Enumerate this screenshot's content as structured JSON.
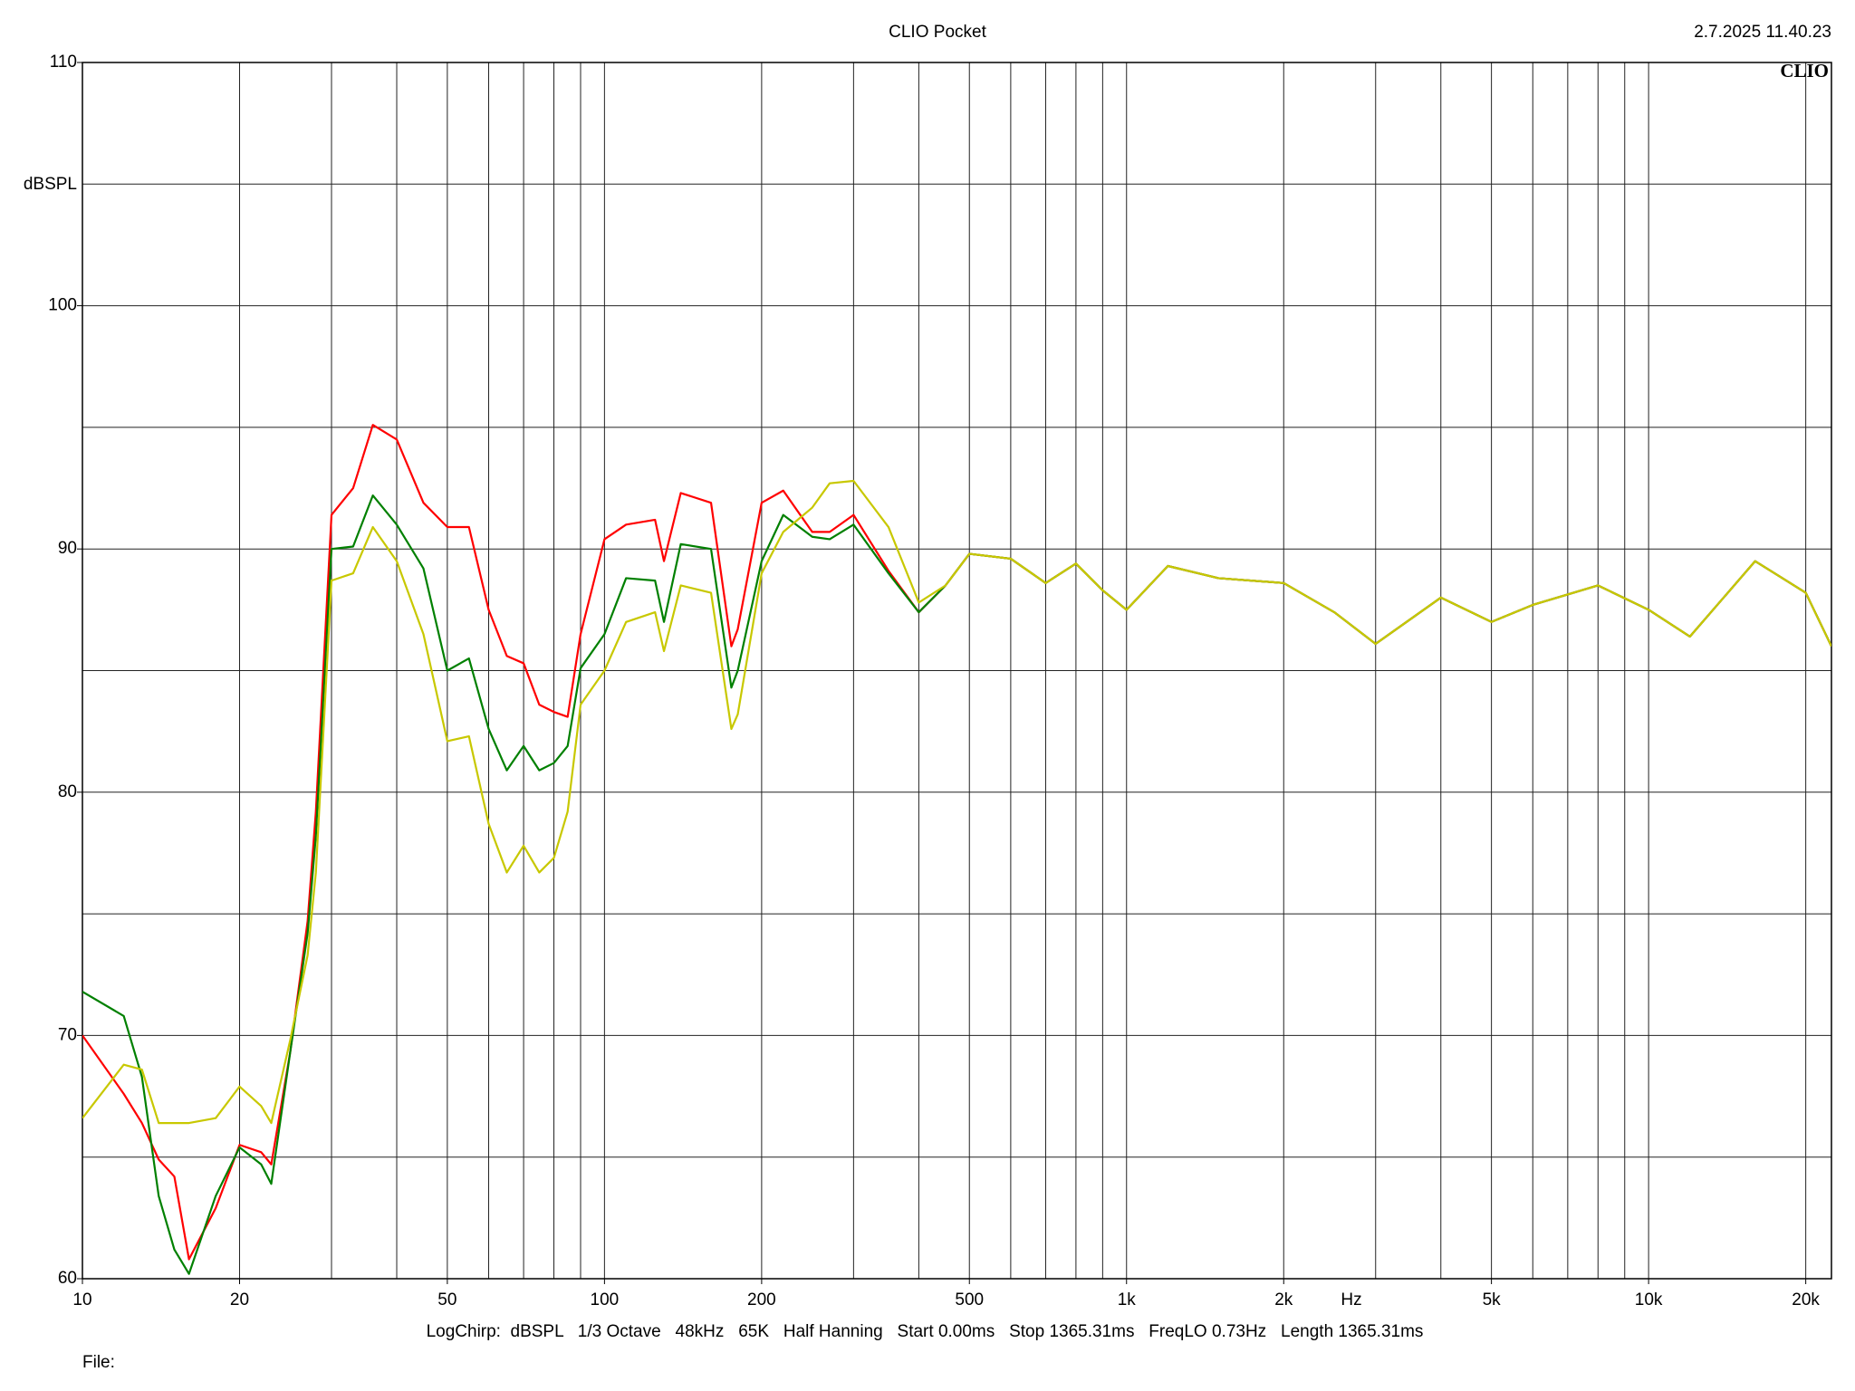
{
  "chart_data": {
    "type": "line",
    "title": "CLIO Pocket",
    "timestamp": "2.7.2025 11.40.23",
    "logo": "CLIO",
    "y_label": "dBSPL",
    "x_label": "Hz",
    "footer": "LogChirp:  dBSPL   1/3 Octave   48kHz   65K   Half Hanning   Start 0.00ms   Stop 1365.31ms   FreqLO 0.73Hz   Length 1365.31ms",
    "file_label": "File:",
    "x_log": true,
    "grid": true,
    "xlim": [
      10,
      22400
    ],
    "ylim": [
      60,
      110
    ],
    "yticks": [
      60,
      70,
      80,
      90,
      100,
      110
    ],
    "ygrid": [
      60,
      65,
      70,
      75,
      80,
      85,
      90,
      95,
      100,
      105,
      110
    ],
    "xticks": [
      10,
      20,
      50,
      100,
      200,
      500,
      {
        "value": 1000,
        "label": "1k"
      },
      {
        "value": 2000,
        "label": "2k"
      },
      {
        "value": 5000,
        "label": "5k"
      },
      {
        "value": 10000,
        "label": "10k"
      },
      {
        "value": 20000,
        "label": "20k"
      }
    ],
    "xgrid": [
      10,
      20,
      30,
      40,
      50,
      60,
      70,
      80,
      90,
      100,
      200,
      300,
      400,
      500,
      600,
      700,
      800,
      900,
      1000,
      2000,
      3000,
      4000,
      5000,
      6000,
      7000,
      8000,
      9000,
      10000,
      20000
    ],
    "x": [
      10,
      12,
      13,
      14,
      15,
      16,
      18,
      20,
      22,
      23,
      25,
      27,
      28,
      30,
      33,
      36,
      40,
      45,
      50,
      55,
      60,
      65,
      70,
      75,
      80,
      85,
      90,
      100,
      110,
      125,
      130,
      140,
      160,
      175,
      180,
      200,
      220,
      250,
      270,
      300,
      350,
      400,
      450,
      500,
      600,
      700,
      800,
      900,
      1000,
      1200,
      1500,
      2000,
      2500,
      3000,
      4000,
      5000,
      6000,
      8000,
      10000,
      12000,
      16000,
      20000,
      22400
    ],
    "series": [
      {
        "name": "red",
        "color": "#ff0000",
        "values": [
          70.0,
          67.6,
          66.4,
          64.9,
          64.2,
          60.8,
          62.9,
          65.5,
          65.2,
          64.7,
          69.3,
          74.7,
          79.2,
          91.4,
          92.5,
          95.1,
          94.5,
          91.9,
          90.9,
          90.9,
          87.5,
          85.6,
          85.3,
          83.6,
          83.3,
          83.1,
          86.5,
          90.4,
          91.0,
          91.2,
          89.5,
          92.3,
          91.9,
          86.0,
          86.7,
          91.9,
          92.4,
          90.7,
          90.7,
          91.4,
          89.1,
          87.4,
          88.5,
          89.8,
          89.6,
          88.6,
          89.4,
          88.3,
          87.5,
          89.3,
          88.8,
          88.6,
          87.4,
          86.1,
          88.0,
          87.0,
          87.7,
          88.5,
          87.5,
          86.4,
          89.5,
          88.2,
          86.0
        ]
      },
      {
        "name": "green",
        "color": "#008000",
        "values": [
          71.8,
          70.8,
          68.3,
          63.4,
          61.2,
          60.2,
          63.4,
          65.4,
          64.7,
          63.9,
          69.3,
          74.2,
          78.2,
          90.0,
          90.1,
          92.2,
          91.0,
          89.2,
          85.0,
          85.5,
          82.6,
          80.9,
          81.9,
          80.9,
          81.2,
          81.9,
          85.1,
          86.5,
          88.8,
          88.7,
          87.0,
          90.2,
          90.0,
          84.3,
          85.0,
          89.5,
          91.4,
          90.5,
          90.4,
          91.0,
          89.0,
          87.4,
          88.5,
          89.8,
          89.6,
          88.6,
          89.4,
          88.3,
          87.5,
          89.3,
          88.8,
          88.6,
          87.4,
          86.1,
          88.0,
          87.0,
          87.7,
          88.5,
          87.5,
          86.4,
          89.5,
          88.2,
          86.0
        ]
      },
      {
        "name": "yellow",
        "color": "#c8c800",
        "values": [
          66.6,
          68.8,
          68.6,
          66.4,
          66.4,
          66.4,
          66.6,
          67.9,
          67.1,
          66.4,
          69.8,
          73.3,
          76.7,
          88.7,
          89.0,
          90.9,
          89.5,
          86.5,
          82.1,
          82.3,
          78.7,
          76.7,
          77.8,
          76.7,
          77.3,
          79.2,
          83.6,
          85.0,
          87.0,
          87.4,
          85.8,
          88.5,
          88.2,
          82.6,
          83.2,
          89.0,
          90.7,
          91.7,
          92.7,
          92.8,
          90.9,
          87.8,
          88.5,
          89.8,
          89.6,
          88.6,
          89.4,
          88.3,
          87.5,
          89.3,
          88.8,
          88.6,
          87.4,
          86.1,
          88.0,
          87.0,
          87.7,
          88.5,
          87.5,
          86.4,
          89.5,
          88.2,
          86.0
        ]
      }
    ]
  }
}
